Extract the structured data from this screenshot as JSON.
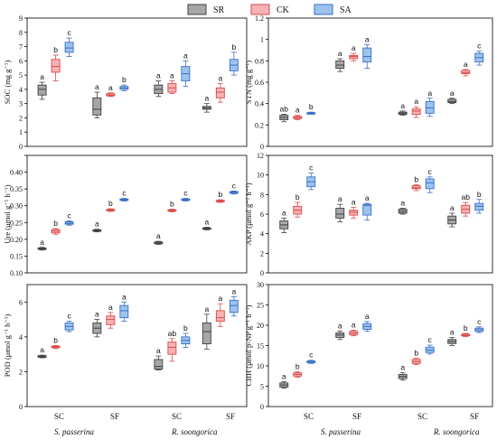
{
  "colors": {
    "SR": {
      "fill": "#a6a6a6",
      "stroke": "#404040"
    },
    "CK": {
      "fill": "#f7b3b3",
      "stroke": "#d94a4a"
    },
    "SA": {
      "fill": "#9cc3ee",
      "stroke": "#3a6fc4"
    }
  },
  "legend": [
    "SR",
    "CK",
    "SA"
  ],
  "groups": [
    "SC",
    "SF",
    "SC",
    "SF"
  ],
  "species": [
    "S. passerina",
    "R. soongorica"
  ],
  "chart_data": [
    {
      "id": "SOC",
      "type": "box",
      "ylabel": "SOC (mg g⁻¹)",
      "ylim": [
        0,
        9
      ],
      "yticks": [
        0,
        1,
        2,
        3,
        4,
        5,
        6,
        7,
        8,
        9
      ],
      "series": [
        {
          "name": "SR",
          "boxes": [
            {
              "min": 3.3,
              "q1": 3.6,
              "med": 4.0,
              "q3": 4.3,
              "max": 4.5,
              "label": "a"
            },
            {
              "min": 2.0,
              "q1": 2.2,
              "med": 2.6,
              "q3": 3.4,
              "max": 3.8,
              "label": "a"
            },
            {
              "min": 3.5,
              "q1": 3.7,
              "med": 4.0,
              "q3": 4.3,
              "max": 4.6,
              "label": "a"
            },
            {
              "min": 2.4,
              "q1": 2.6,
              "med": 2.7,
              "q3": 2.8,
              "max": 3.0,
              "label": "a"
            }
          ]
        },
        {
          "name": "CK",
          "boxes": [
            {
              "min": 4.6,
              "q1": 5.2,
              "med": 5.6,
              "q3": 6.1,
              "max": 6.4,
              "label": "b"
            },
            {
              "min": 3.5,
              "q1": 3.55,
              "med": 3.6,
              "q3": 3.7,
              "max": 3.75,
              "label": "a"
            },
            {
              "min": 3.7,
              "q1": 3.8,
              "med": 4.1,
              "q3": 4.4,
              "max": 4.6,
              "label": "a"
            },
            {
              "min": 3.1,
              "q1": 3.4,
              "med": 3.8,
              "q3": 4.1,
              "max": 4.4,
              "label": "a"
            }
          ]
        },
        {
          "name": "SA",
          "boxes": [
            {
              "min": 6.3,
              "q1": 6.6,
              "med": 6.9,
              "q3": 7.3,
              "max": 7.6,
              "label": "c"
            },
            {
              "min": 3.9,
              "q1": 4.0,
              "med": 4.1,
              "q3": 4.2,
              "max": 4.3,
              "label": "b"
            },
            {
              "min": 4.2,
              "q1": 4.6,
              "med": 5.1,
              "q3": 5.6,
              "max": 6.0,
              "label": "a"
            },
            {
              "min": 5.0,
              "q1": 5.3,
              "med": 5.7,
              "q3": 6.1,
              "max": 6.6,
              "label": "b"
            }
          ]
        }
      ]
    },
    {
      "id": "STN",
      "type": "box",
      "ylabel": "STN (mg g⁻¹)",
      "ylim": [
        0,
        1.2
      ],
      "yticks": [
        0.0,
        0.2,
        0.4,
        0.6,
        0.8,
        1.0,
        1.2
      ],
      "series": [
        {
          "name": "SR",
          "boxes": [
            {
              "min": 0.23,
              "q1": 0.25,
              "med": 0.27,
              "q3": 0.29,
              "max": 0.3,
              "label": "ab"
            },
            {
              "min": 0.7,
              "q1": 0.73,
              "med": 0.76,
              "q3": 0.8,
              "max": 0.82,
              "label": "a"
            },
            {
              "min": 0.29,
              "q1": 0.3,
              "med": 0.31,
              "q3": 0.32,
              "max": 0.33,
              "label": "a"
            },
            {
              "min": 0.4,
              "q1": 0.41,
              "med": 0.42,
              "q3": 0.44,
              "max": 0.45,
              "label": "a"
            }
          ]
        },
        {
          "name": "CK",
          "boxes": [
            {
              "min": 0.25,
              "q1": 0.26,
              "med": 0.27,
              "q3": 0.28,
              "max": 0.29,
              "label": "a"
            },
            {
              "min": 0.8,
              "q1": 0.82,
              "med": 0.84,
              "q3": 0.85,
              "max": 0.87,
              "label": "a"
            },
            {
              "min": 0.27,
              "q1": 0.3,
              "med": 0.33,
              "q3": 0.35,
              "max": 0.37,
              "label": "a"
            },
            {
              "min": 0.66,
              "q1": 0.68,
              "med": 0.69,
              "q3": 0.71,
              "max": 0.72,
              "label": "a"
            }
          ]
        },
        {
          "name": "SA",
          "boxes": [
            {
              "min": 0.3,
              "q1": 0.305,
              "med": 0.31,
              "q3": 0.315,
              "max": 0.32,
              "label": "b"
            },
            {
              "min": 0.73,
              "q1": 0.79,
              "med": 0.84,
              "q3": 0.92,
              "max": 0.95,
              "label": "a"
            },
            {
              "min": 0.28,
              "q1": 0.31,
              "med": 0.36,
              "q3": 0.42,
              "max": 0.45,
              "label": "a"
            },
            {
              "min": 0.76,
              "q1": 0.79,
              "med": 0.83,
              "q3": 0.87,
              "max": 0.89,
              "label": "c"
            }
          ]
        }
      ]
    },
    {
      "id": "Ure",
      "type": "box",
      "ylabel": "Ure (μmol g⁻¹ h⁻¹)",
      "ylim": [
        0.1,
        0.45
      ],
      "yticks": [
        0.1,
        0.15,
        0.2,
        0.25,
        0.3,
        0.35,
        0.4,
        0.45
      ],
      "ticklabels": [
        "0.10",
        "0.15",
        "0.20",
        "0.25",
        "0.30",
        "0.35",
        "0.40",
        ""
      ],
      "series": [
        {
          "name": "SR",
          "boxes": [
            {
              "min": 0.168,
              "q1": 0.17,
              "med": 0.172,
              "q3": 0.174,
              "max": 0.176,
              "label": "a"
            },
            {
              "min": 0.222,
              "q1": 0.224,
              "med": 0.226,
              "q3": 0.228,
              "max": 0.23,
              "label": "a"
            },
            {
              "min": 0.185,
              "q1": 0.187,
              "med": 0.189,
              "q3": 0.192,
              "max": 0.194,
              "label": "a"
            },
            {
              "min": 0.228,
              "q1": 0.23,
              "med": 0.232,
              "q3": 0.234,
              "max": 0.236,
              "label": "a"
            }
          ]
        },
        {
          "name": "CK",
          "boxes": [
            {
              "min": 0.215,
              "q1": 0.219,
              "med": 0.224,
              "q3": 0.229,
              "max": 0.232,
              "label": "b"
            },
            {
              "min": 0.283,
              "q1": 0.285,
              "med": 0.287,
              "q3": 0.289,
              "max": 0.291,
              "label": "b"
            },
            {
              "min": 0.282,
              "q1": 0.284,
              "med": 0.286,
              "q3": 0.288,
              "max": 0.29,
              "label": "b"
            },
            {
              "min": 0.31,
              "q1": 0.312,
              "med": 0.314,
              "q3": 0.316,
              "max": 0.318,
              "label": "b"
            }
          ]
        },
        {
          "name": "SA",
          "boxes": [
            {
              "min": 0.242,
              "q1": 0.245,
              "med": 0.248,
              "q3": 0.252,
              "max": 0.255,
              "label": "c"
            },
            {
              "min": 0.314,
              "q1": 0.316,
              "med": 0.318,
              "q3": 0.32,
              "max": 0.322,
              "label": "c"
            },
            {
              "min": 0.314,
              "q1": 0.316,
              "med": 0.318,
              "q3": 0.32,
              "max": 0.322,
              "label": "c"
            },
            {
              "min": 0.335,
              "q1": 0.337,
              "med": 0.34,
              "q3": 0.342,
              "max": 0.344,
              "label": "c"
            }
          ]
        }
      ]
    },
    {
      "id": "AKP",
      "type": "box",
      "ylabel": "AKP (μmol g⁻¹ h⁻¹)",
      "ylim": [
        0,
        12
      ],
      "yticks": [
        0,
        2,
        4,
        6,
        8,
        10,
        12
      ],
      "series": [
        {
          "name": "SR",
          "boxes": [
            {
              "min": 4.1,
              "q1": 4.5,
              "med": 4.9,
              "q3": 5.3,
              "max": 5.6,
              "label": "a"
            },
            {
              "min": 5.2,
              "q1": 5.6,
              "med": 6.0,
              "q3": 6.6,
              "max": 7.0,
              "label": "a"
            },
            {
              "min": 6.0,
              "q1": 6.1,
              "med": 6.3,
              "q3": 6.5,
              "max": 6.6,
              "label": "a"
            },
            {
              "min": 4.7,
              "q1": 5.0,
              "med": 5.4,
              "q3": 5.8,
              "max": 6.1,
              "label": "a"
            }
          ]
        },
        {
          "name": "CK",
          "boxes": [
            {
              "min": 5.7,
              "q1": 6.0,
              "med": 6.4,
              "q3": 6.8,
              "max": 7.2,
              "label": "b"
            },
            {
              "min": 5.6,
              "q1": 5.9,
              "med": 6.2,
              "q3": 6.4,
              "max": 6.7,
              "label": "a"
            },
            {
              "min": 8.4,
              "q1": 8.6,
              "med": 8.7,
              "q3": 8.9,
              "max": 9.0,
              "label": "b"
            },
            {
              "min": 5.8,
              "q1": 6.1,
              "med": 6.5,
              "q3": 6.9,
              "max": 7.2,
              "label": "ab"
            }
          ]
        },
        {
          "name": "SA",
          "boxes": [
            {
              "min": 8.5,
              "q1": 8.8,
              "med": 9.3,
              "q3": 9.8,
              "max": 10.2,
              "label": "c"
            },
            {
              "min": 5.4,
              "q1": 5.9,
              "med": 6.9,
              "q3": 7.0,
              "max": 7.1,
              "label": "a"
            },
            {
              "min": 8.2,
              "q1": 8.6,
              "med": 9.2,
              "q3": 9.6,
              "max": 9.8,
              "label": "c"
            },
            {
              "min": 6.1,
              "q1": 6.4,
              "med": 6.8,
              "q3": 7.1,
              "max": 7.5,
              "label": "b"
            }
          ]
        }
      ]
    },
    {
      "id": "POD",
      "type": "box",
      "ylabel": "POD (μmol g⁻¹ h⁻¹)",
      "ylim": [
        0,
        7
      ],
      "yticks": [
        0,
        2,
        4,
        6
      ],
      "series": [
        {
          "name": "SR",
          "boxes": [
            {
              "min": 2.8,
              "q1": 2.83,
              "med": 2.87,
              "q3": 2.92,
              "max": 2.95,
              "label": "a"
            },
            {
              "min": 4.0,
              "q1": 4.2,
              "med": 4.5,
              "q3": 4.8,
              "max": 5.0,
              "label": "a"
            },
            {
              "min": 2.1,
              "q1": 2.15,
              "med": 2.3,
              "q3": 2.7,
              "max": 2.9,
              "label": "a"
            },
            {
              "min": 3.3,
              "q1": 3.6,
              "med": 4.3,
              "q3": 4.8,
              "max": 5.3,
              "label": "a"
            }
          ]
        },
        {
          "name": "CK",
          "boxes": [
            {
              "min": 3.33,
              "q1": 3.38,
              "med": 3.43,
              "q3": 3.47,
              "max": 3.5,
              "label": "b"
            },
            {
              "min": 4.5,
              "q1": 4.7,
              "med": 5.0,
              "q3": 5.2,
              "max": 5.4,
              "label": "a"
            },
            {
              "min": 2.6,
              "q1": 3.0,
              "med": 3.4,
              "q3": 3.7,
              "max": 3.9,
              "label": "ab"
            },
            {
              "min": 4.6,
              "q1": 4.9,
              "med": 5.1,
              "q3": 5.5,
              "max": 5.9,
              "label": "a"
            }
          ]
        },
        {
          "name": "SA",
          "boxes": [
            {
              "min": 4.3,
              "q1": 4.4,
              "med": 4.6,
              "q3": 4.8,
              "max": 4.9,
              "label": "c"
            },
            {
              "min": 4.9,
              "q1": 5.1,
              "med": 5.5,
              "q3": 5.8,
              "max": 6.0,
              "label": "a"
            },
            {
              "min": 3.4,
              "q1": 3.6,
              "med": 3.8,
              "q3": 4.0,
              "max": 4.2,
              "label": "b"
            },
            {
              "min": 5.2,
              "q1": 5.4,
              "med": 5.8,
              "q3": 6.1,
              "max": 6.3,
              "label": "a"
            }
          ]
        }
      ]
    },
    {
      "id": "CBH",
      "type": "box",
      "ylabel": "CBH (μmol p-NP g⁻¹ h⁻¹)",
      "ylim": [
        0,
        30
      ],
      "yticks": [
        0,
        5,
        10,
        15,
        20,
        25,
        30
      ],
      "series": [
        {
          "name": "SR",
          "boxes": [
            {
              "min": 4.5,
              "q1": 4.8,
              "med": 5.3,
              "q3": 5.8,
              "max": 6.1,
              "label": "a"
            },
            {
              "min": 16.5,
              "q1": 17.0,
              "med": 17.6,
              "q3": 18.1,
              "max": 18.6,
              "label": "a"
            },
            {
              "min": 6.5,
              "q1": 6.9,
              "med": 7.4,
              "q3": 7.9,
              "max": 8.3,
              "label": "a"
            },
            {
              "min": 15.0,
              "q1": 15.5,
              "med": 16.0,
              "q3": 16.5,
              "max": 17.0,
              "label": "a"
            }
          ]
        },
        {
          "name": "CK",
          "boxes": [
            {
              "min": 7.2,
              "q1": 7.5,
              "med": 7.9,
              "q3": 8.3,
              "max": 8.6,
              "label": "b"
            },
            {
              "min": 17.4,
              "q1": 17.7,
              "med": 18.1,
              "q3": 18.5,
              "max": 18.8,
              "label": "a"
            },
            {
              "min": 10.3,
              "q1": 10.6,
              "med": 11.1,
              "q3": 11.6,
              "max": 11.9,
              "label": "b"
            },
            {
              "min": 17.2,
              "q1": 17.4,
              "med": 17.6,
              "q3": 17.8,
              "max": 18.0,
              "label": "b"
            }
          ]
        },
        {
          "name": "SA",
          "boxes": [
            {
              "min": 10.6,
              "q1": 10.8,
              "med": 11.0,
              "q3": 11.2,
              "max": 11.4,
              "label": "c"
            },
            {
              "min": 18.5,
              "q1": 19.0,
              "med": 19.7,
              "q3": 20.4,
              "max": 20.9,
              "label": "a"
            },
            {
              "min": 12.9,
              "q1": 13.3,
              "med": 13.9,
              "q3": 14.6,
              "max": 15.1,
              "label": "c"
            },
            {
              "min": 18.2,
              "q1": 18.5,
              "med": 18.9,
              "q3": 19.3,
              "max": 19.6,
              "label": "c"
            }
          ]
        }
      ]
    }
  ]
}
